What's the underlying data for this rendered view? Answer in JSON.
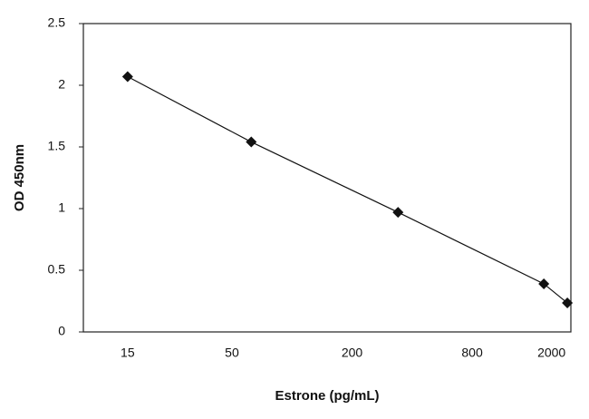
{
  "chart_data": {
    "type": "line",
    "x_label": "Estrone (pg/mL)",
    "y_label": "OD 450nm",
    "x": [
      15,
      62.5,
      340,
      1830,
      2400
    ],
    "series": [
      {
        "color": "#111111",
        "values": [
          2.07,
          1.54,
          0.97,
          0.39,
          0.235
        ]
      }
    ],
    "xscale": "log",
    "xlim": [
      9,
      2500
    ],
    "xticks": [
      15,
      50,
      200,
      800,
      2000
    ],
    "ylim": [
      0,
      2.5
    ],
    "yticks": [
      0,
      0.5,
      1,
      1.5,
      2,
      2.5
    ],
    "grid": false
  }
}
